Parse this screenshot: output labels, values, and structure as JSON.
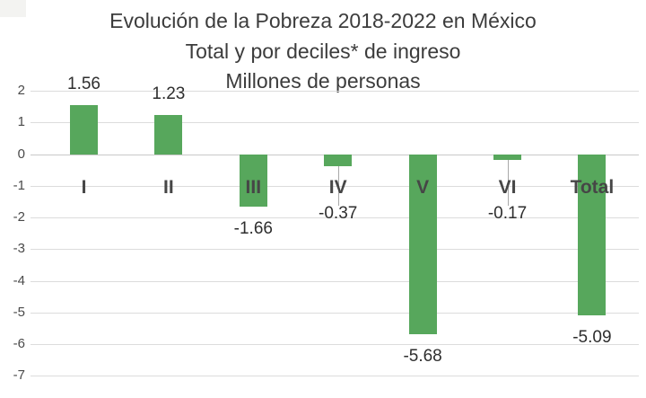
{
  "chart_data": {
    "type": "bar",
    "title": "Evolución de la Pobreza 2018-2022 en México",
    "subtitle": "Total y por deciles* de ingreso",
    "unit_label": "Millones de personas",
    "categories": [
      "I",
      "II",
      "III",
      "IV",
      "V",
      "VI",
      "Total"
    ],
    "values": [
      1.56,
      1.23,
      -1.66,
      -0.37,
      -5.68,
      -0.17,
      -5.09
    ],
    "data_labels": [
      "1.56",
      "1.23",
      "-1.66",
      "-0.37",
      "-5.68",
      "-0.17",
      "-5.09"
    ],
    "y_ticks": [
      2,
      1,
      0,
      -1,
      -2,
      -3,
      -4,
      -5,
      -6,
      -7
    ],
    "ylim": [
      -7,
      2
    ],
    "xlabel": "",
    "ylabel": "",
    "grid": true,
    "legend": "none",
    "bar_color": "#57a75c",
    "gridline_color": "#dcdcdc",
    "zero_line_color": "#c9c9c9",
    "title_color": "#3c3c3c",
    "tick_label_color": "#4a4a4a",
    "data_label_color": "#2e2e2e",
    "category_label_color": "#464646",
    "background_color": "#ffffff"
  }
}
